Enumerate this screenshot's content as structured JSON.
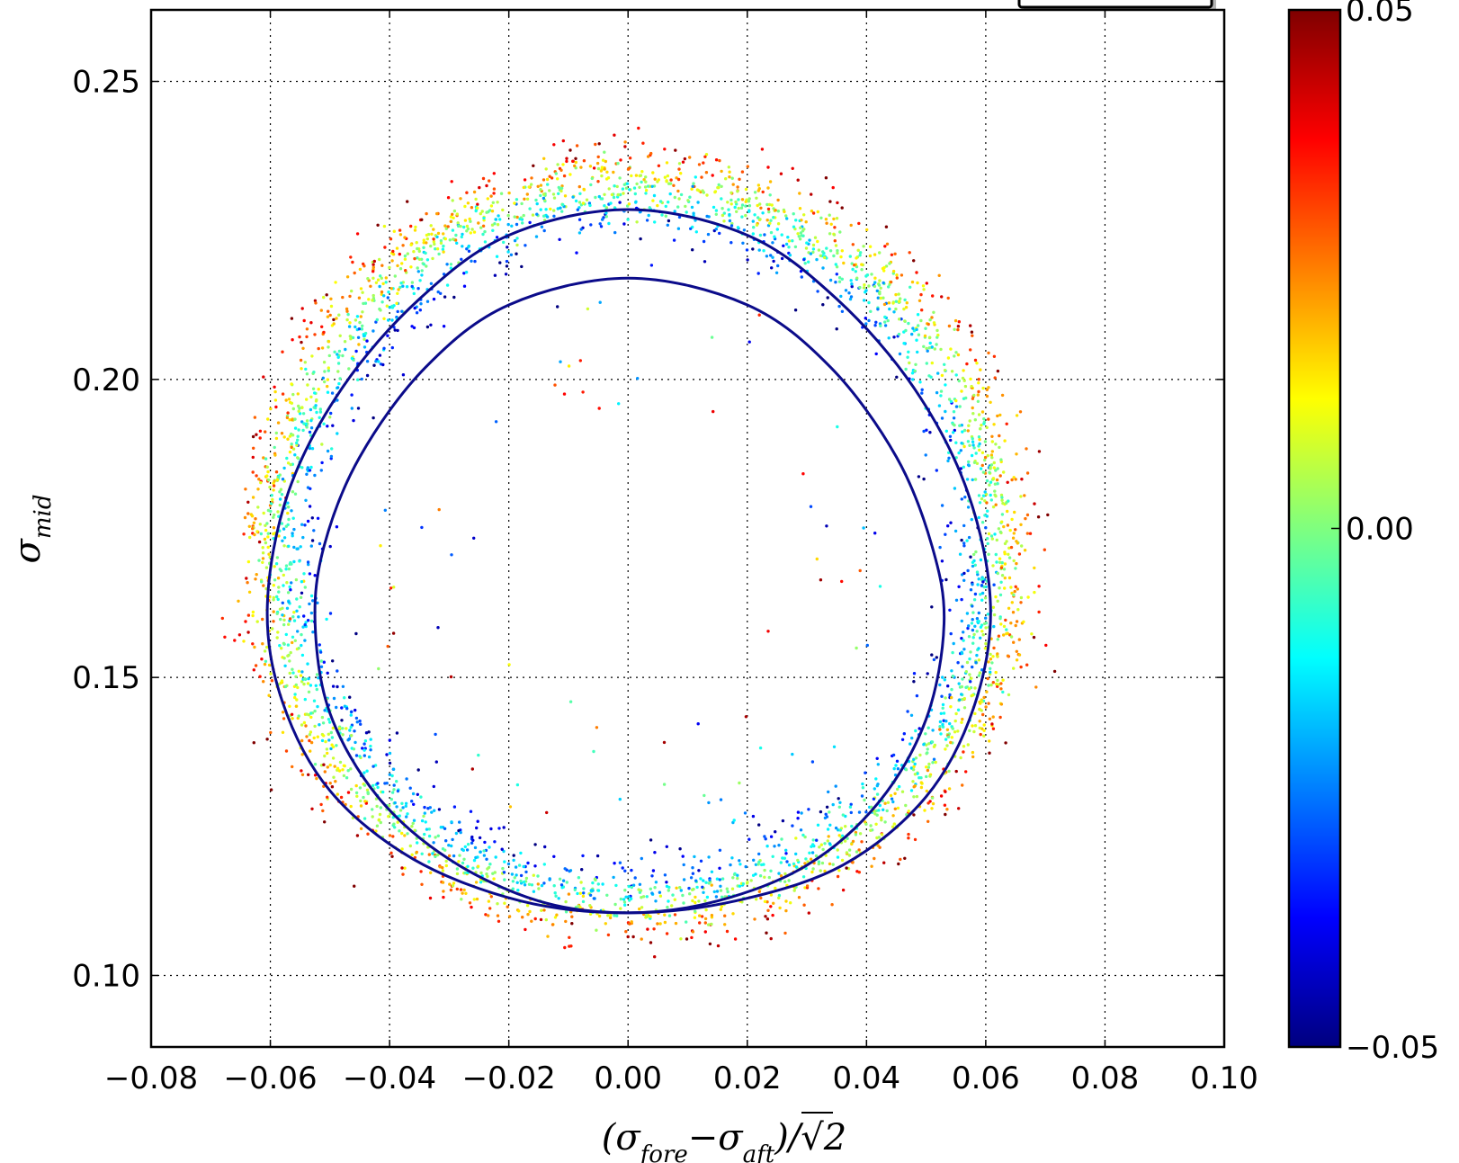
{
  "chart_data": {
    "type": "scatter",
    "title": "",
    "xlabel": {
      "open": "(σ",
      "sub1": "fore",
      "minus": "−σ",
      "sub2": "aft",
      "close": ")/√",
      "two": "2"
    },
    "ylabel": {
      "sigma": "σ",
      "sub": "mid"
    },
    "xlim": [
      -0.08,
      0.1
    ],
    "ylim": [
      0.088,
      0.262
    ],
    "xticks": [
      -0.08,
      -0.06,
      -0.04,
      -0.02,
      0.0,
      0.02,
      0.04,
      0.06,
      0.08,
      0.1
    ],
    "xtick_labels": [
      "−0.08",
      "−0.06",
      "−0.04",
      "−0.02",
      "0.00",
      "0.02",
      "0.04",
      "0.06",
      "0.08",
      "0.10"
    ],
    "yticks": [
      0.1,
      0.15,
      0.2,
      0.25
    ],
    "ytick_labels": [
      "0.10",
      "0.15",
      "0.20",
      "0.25"
    ],
    "grid": true,
    "grid_style": "dotted",
    "colorbar": {
      "colormap": "jet",
      "range": [
        -0.05,
        0.05
      ],
      "ticks": [
        0.05,
        0.0,
        -0.05
      ],
      "tick_labels": [
        "0.05",
        "0.00",
        "−0.05"
      ]
    },
    "curves": [
      {
        "color": "#0b0b8a",
        "points": [
          [
            0.0,
            0.2285
          ],
          [
            0.02,
            0.2242
          ],
          [
            0.035,
            0.2135
          ],
          [
            0.048,
            0.1985
          ],
          [
            0.057,
            0.181
          ],
          [
            0.0608,
            0.162
          ],
          [
            0.058,
            0.145
          ],
          [
            0.05,
            0.13
          ],
          [
            0.036,
            0.1185
          ],
          [
            0.018,
            0.1125
          ],
          [
            0.0,
            0.1105
          ],
          [
            -0.018,
            0.1125
          ],
          [
            -0.036,
            0.1195
          ],
          [
            -0.05,
            0.131
          ],
          [
            -0.058,
            0.146
          ],
          [
            -0.0605,
            0.162
          ],
          [
            -0.057,
            0.181
          ],
          [
            -0.048,
            0.1985
          ],
          [
            -0.035,
            0.2135
          ],
          [
            -0.02,
            0.2242
          ]
        ]
      },
      {
        "color": "#0b0b8a",
        "points": [
          [
            0.0,
            0.217
          ],
          [
            0.02,
            0.2125
          ],
          [
            0.034,
            0.202
          ],
          [
            0.045,
            0.187
          ],
          [
            0.051,
            0.172
          ],
          [
            0.053,
            0.159
          ],
          [
            0.05,
            0.143
          ],
          [
            0.042,
            0.129
          ],
          [
            0.03,
            0.1185
          ],
          [
            0.015,
            0.1125
          ],
          [
            0.0,
            0.1105
          ],
          [
            -0.015,
            0.1125
          ],
          [
            -0.03,
            0.1195
          ],
          [
            -0.042,
            0.13
          ],
          [
            -0.05,
            0.144
          ],
          [
            -0.0525,
            0.159
          ],
          [
            -0.051,
            0.172
          ],
          [
            -0.045,
            0.187
          ],
          [
            -0.034,
            0.202
          ],
          [
            -0.02,
            0.2125
          ]
        ]
      }
    ],
    "scatter_description": "~4000 colored points forming a ring around the curves, colored by value in [-0.05, 0.05]"
  },
  "legend_frame": ""
}
